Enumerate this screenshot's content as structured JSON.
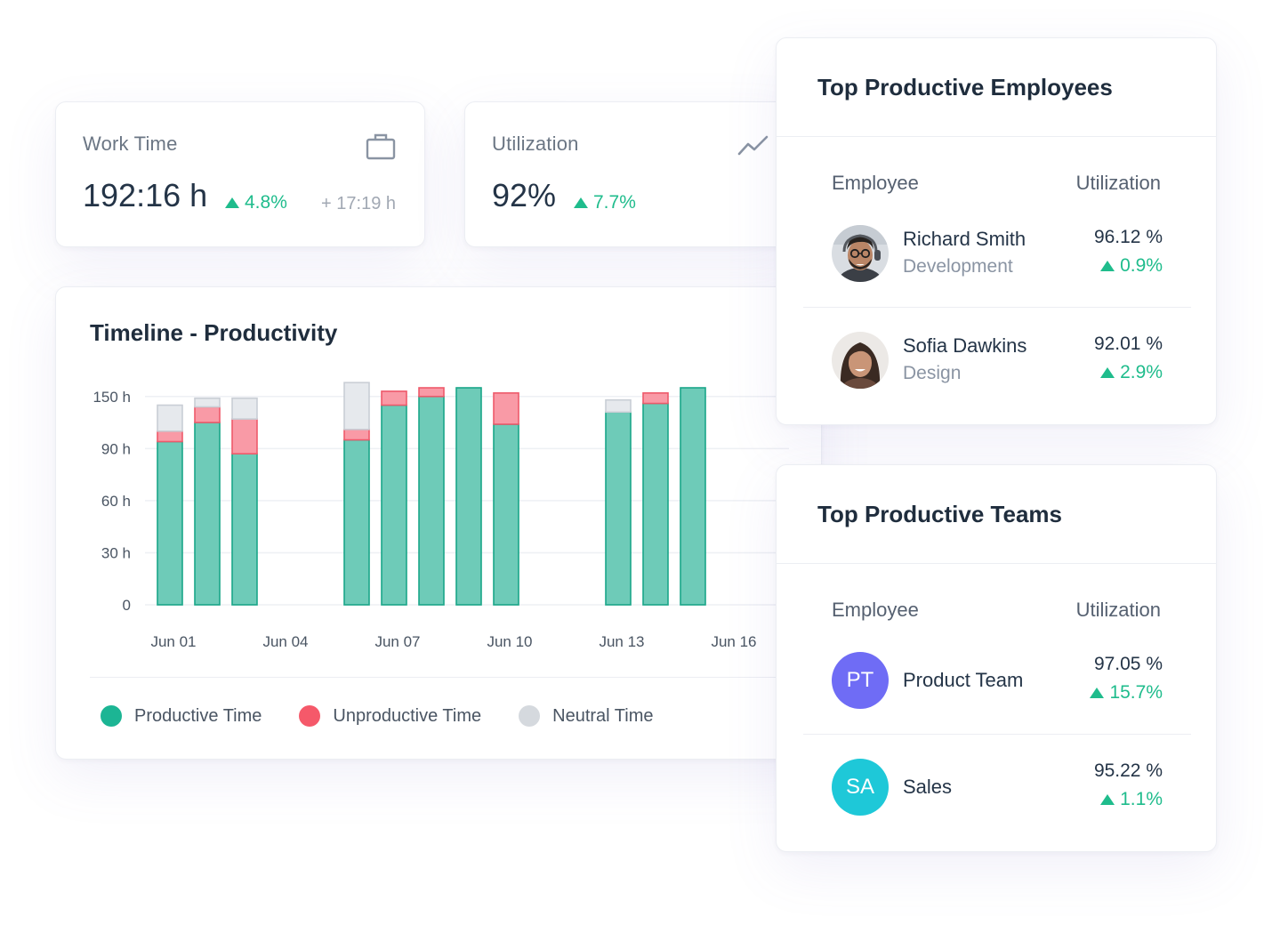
{
  "colors": {
    "productive": "#6ecbb8",
    "productive_stroke": "#1aa688",
    "unproductive": "#f99aa6",
    "unproductive_stroke": "#ee5a6b",
    "neutral": "#e6e9ed",
    "neutral_stroke": "#c9ced5",
    "positive": "#1fbc8c",
    "avatar_pt": "#6f6cf5",
    "avatar_sa": "#1ec8d8"
  },
  "work_time": {
    "label": "Work Time",
    "icon": "briefcase-icon",
    "value": "192:16 h",
    "delta": "4.8%",
    "extra": "+ 17:19 h"
  },
  "utilization": {
    "label": "Utilization",
    "icon": "trend-line-icon",
    "value": "92%",
    "delta": "7.7%"
  },
  "timeline": {
    "title": "Timeline - Productivity",
    "legend": [
      {
        "label": "Productive Time",
        "color": "#1cb594"
      },
      {
        "label": "Unproductive Time",
        "color": "#f5596a"
      },
      {
        "label": "Neutral Time",
        "color": "#d5d9de"
      }
    ]
  },
  "chart_data": {
    "type": "bar",
    "stacked": true,
    "y_ticks": [
      "0",
      "30 h",
      "60 h",
      "90 h",
      "150 h"
    ],
    "x_tick_labels": [
      "Jun 01",
      "Jun 04",
      "Jun 07",
      "Jun 10",
      "Jun 13",
      "Jun 16"
    ],
    "categories": [
      "Jun 01",
      "Jun 02",
      "Jun 03",
      "Jun 04",
      "Jun 05",
      "Jun 06",
      "Jun 07",
      "Jun 08",
      "Jun 09",
      "Jun 10",
      "Jun 11",
      "Jun 12",
      "Jun 13",
      "Jun 14",
      "Jun 15",
      "Jun 16"
    ],
    "series": [
      {
        "name": "Productive Time",
        "values": [
          94,
          105,
          87,
          0,
          0,
          95,
          115,
          120,
          125,
          104,
          0,
          0,
          111,
          116,
          125,
          0
        ]
      },
      {
        "name": "Unproductive Time",
        "values": [
          6,
          9,
          20,
          0,
          0,
          6,
          8,
          5,
          0,
          18,
          0,
          0,
          0,
          6,
          0,
          0
        ]
      },
      {
        "name": "Neutral Time",
        "values": [
          15,
          5,
          12,
          0,
          0,
          27,
          0,
          0,
          0,
          0,
          0,
          0,
          7,
          0,
          0,
          0
        ]
      }
    ]
  },
  "top_employees": {
    "title": "Top Productive Employees",
    "col_employee": "Employee",
    "col_utilization": "Utilization",
    "rows": [
      {
        "name": "Richard Smith",
        "dept": "Development",
        "util": "96.12 %",
        "delta": "0.9%"
      },
      {
        "name": "Sofia Dawkins",
        "dept": "Design",
        "util": "92.01 %",
        "delta": "2.9%"
      }
    ]
  },
  "top_teams": {
    "title": "Top Productive Teams",
    "col_employee": "Employee",
    "col_utilization": "Utilization",
    "rows": [
      {
        "initials": "PT",
        "name": "Product Team",
        "util": "97.05 %",
        "delta": "15.7%"
      },
      {
        "initials": "SA",
        "name": "Sales",
        "util": "95.22 %",
        "delta": "1.1%"
      }
    ]
  }
}
